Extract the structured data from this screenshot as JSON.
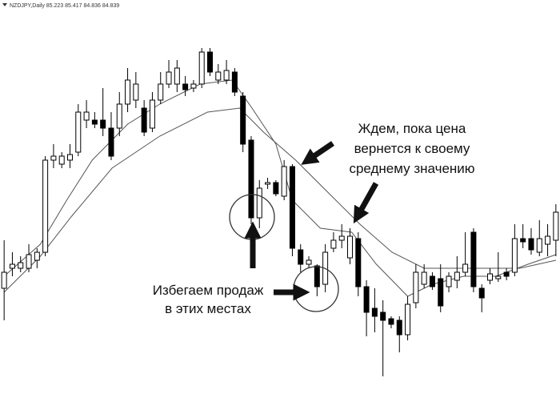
{
  "chart_data": {
    "type": "candlestick",
    "title": "NZDJPY,Daily  85.223 85.417 84.836 84.839",
    "up_color": "#ffffff",
    "down_color": "#000000",
    "edge_color": "#000000",
    "ylim": [
      0,
      522
    ],
    "open": [
      162,
      187,
      187,
      187,
      197,
      207,
      322,
      317,
      322,
      332,
      372,
      372,
      372,
      362,
      362,
      392,
      397,
      387,
      362,
      397,
      417,
      417,
      417,
      412,
      417,
      457,
      422,
      422,
      432,
      402,
      347,
      250,
      292,
      294,
      277,
      314,
      210,
      192,
      190,
      167,
      212,
      222,
      200,
      224,
      164,
      137,
      132,
      124,
      122,
      104,
      144,
      167,
      177,
      174,
      164,
      172,
      182,
      232,
      162,
      172,
      174,
      182,
      182,
      224,
      224,
      207,
      217,
      222
    ],
    "high": [
      222,
      207,
      202,
      217,
      212,
      327,
      342,
      332,
      342,
      392,
      397,
      382,
      412,
      382,
      407,
      437,
      432,
      397,
      407,
      432,
      447,
      447,
      427,
      422,
      462,
      462,
      442,
      447,
      437,
      407,
      352,
      297,
      300,
      297,
      322,
      317,
      217,
      202,
      192,
      217,
      232,
      242,
      237,
      232,
      172,
      162,
      147,
      127,
      127,
      152,
      192,
      192,
      182,
      192,
      182,
      202,
      232,
      237,
      167,
      187,
      207,
      187,
      242,
      242,
      237,
      247,
      242,
      267
    ],
    "low": [
      122,
      177,
      182,
      182,
      187,
      202,
      312,
      312,
      312,
      327,
      362,
      362,
      352,
      322,
      352,
      382,
      387,
      352,
      357,
      392,
      412,
      407,
      402,
      407,
      412,
      427,
      417,
      417,
      402,
      332,
      242,
      237,
      286,
      277,
      272,
      202,
      182,
      187,
      152,
      157,
      207,
      212,
      192,
      152,
      102,
      107,
      52,
      112,
      82,
      97,
      137,
      162,
      160,
      132,
      157,
      162,
      177,
      157,
      132,
      167,
      170,
      172,
      177,
      212,
      204,
      202,
      202,
      202
    ],
    "close": [
      182,
      192,
      194,
      204,
      207,
      322,
      327,
      327,
      329,
      382,
      382,
      367,
      362,
      327,
      392,
      422,
      417,
      357,
      397,
      417,
      432,
      437,
      410,
      417,
      457,
      432,
      432,
      434,
      407,
      342,
      250,
      287,
      294,
      280,
      314,
      212,
      192,
      197,
      164,
      207,
      222,
      227,
      227,
      164,
      132,
      127,
      122,
      117,
      104,
      142,
      182,
      182,
      164,
      140,
      177,
      182,
      192,
      164,
      150,
      180,
      177,
      177,
      224,
      220,
      210,
      224,
      227,
      257
    ],
    "lines": [
      {
        "color": "#555555",
        "x": [
          0,
          4.4,
          7.6,
          10.7,
          15.0,
          18.9,
          23.8,
          27.7,
          30.1,
          33.0,
          35.0,
          38.4,
          42.2,
          45.2,
          49.0,
          52.0,
          55.8,
          59.7,
          63.6,
          67.0
        ],
        "values": [
          177,
          217,
          272,
          322,
          367,
          392,
          417,
          422,
          387,
          342,
          272,
          237,
          232,
          192,
          152,
          167,
          177,
          177,
          192,
          204
        ]
      },
      {
        "color": "#555555",
        "x": [
          0,
          4.4,
          8.2,
          13.1,
          18.9,
          24.7,
          28.6,
          31.5,
          35.4,
          39.3,
          43.2,
          47.1,
          51.0,
          54.9,
          58.7,
          62.6,
          67.0
        ],
        "values": [
          157,
          202,
          252,
          312,
          352,
          382,
          387,
          357,
          322,
          282,
          242,
          207,
          187,
          187,
          187,
          187,
          197
        ]
      }
    ],
    "annotations": [
      {
        "lines": [
          "Ждем, пока цена",
          "вернется к своему",
          "среднему значению"
        ]
      },
      {
        "lines": [
          "Избегаем продаж",
          "в этих местах"
        ]
      }
    ]
  }
}
